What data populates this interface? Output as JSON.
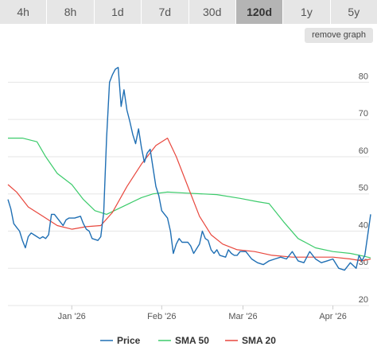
{
  "tabs": [
    {
      "label": "4h",
      "active": false
    },
    {
      "label": "8h",
      "active": false
    },
    {
      "label": "1d",
      "active": false
    },
    {
      "label": "7d",
      "active": false
    },
    {
      "label": "30d",
      "active": false
    },
    {
      "label": "120d",
      "active": true
    },
    {
      "label": "1y",
      "active": false
    },
    {
      "label": "5y",
      "active": false
    }
  ],
  "remove_graph_label": "remove graph",
  "colors": {
    "price": "#1f6fb4",
    "sma50": "#3ccb6b",
    "sma20": "#e8473d"
  },
  "chart_data": {
    "type": "line",
    "title": "",
    "xlabel": "",
    "ylabel": "",
    "ylim": [
      20,
      88
    ],
    "yticks": [
      20,
      30,
      40,
      50,
      60,
      70,
      80
    ],
    "x_range": [
      "2025-12-10",
      "2026-04-14"
    ],
    "xticks": [
      {
        "label": "Jan '26",
        "date": "2026-01-01"
      },
      {
        "label": "Feb '26",
        "date": "2026-02-01"
      },
      {
        "label": "Mar '26",
        "date": "2026-03-01"
      },
      {
        "label": "Apr '26",
        "date": "2026-04-01"
      }
    ],
    "grid": true,
    "legend_position": "bottom",
    "series": [
      {
        "name": "Price",
        "color_key": "price",
        "points": [
          [
            "2025-12-10",
            48.5
          ],
          [
            "2025-12-11",
            46
          ],
          [
            "2025-12-12",
            42
          ],
          [
            "2025-12-13",
            41
          ],
          [
            "2025-12-14",
            40
          ],
          [
            "2025-12-15",
            37.5
          ],
          [
            "2025-12-16",
            35.5
          ],
          [
            "2025-12-17",
            38.5
          ],
          [
            "2025-12-18",
            39.5
          ],
          [
            "2025-12-19",
            39
          ],
          [
            "2025-12-20",
            38.5
          ],
          [
            "2025-12-21",
            38
          ],
          [
            "2025-12-22",
            38.5
          ],
          [
            "2025-12-23",
            38
          ],
          [
            "2025-12-24",
            39
          ],
          [
            "2025-12-25",
            44.5
          ],
          [
            "2025-12-26",
            44.5
          ],
          [
            "2025-12-27",
            43.5
          ],
          [
            "2025-12-28",
            42.5
          ],
          [
            "2025-12-29",
            41.5
          ],
          [
            "2025-12-30",
            43
          ],
          [
            "2025-12-31",
            43.5
          ],
          [
            "2026-01-02",
            43.5
          ],
          [
            "2026-01-04",
            44
          ],
          [
            "2026-01-05",
            42
          ],
          [
            "2026-01-06",
            40.5
          ],
          [
            "2026-01-07",
            40
          ],
          [
            "2026-01-08",
            38
          ],
          [
            "2026-01-10",
            37.5
          ],
          [
            "2026-01-11",
            38.5
          ],
          [
            "2026-01-12",
            45
          ],
          [
            "2026-01-13",
            65
          ],
          [
            "2026-01-14",
            80
          ],
          [
            "2026-01-15",
            82
          ],
          [
            "2026-01-16",
            83.5
          ],
          [
            "2026-01-17",
            84
          ],
          [
            "2026-01-18",
            73.5
          ],
          [
            "2026-01-19",
            78
          ],
          [
            "2026-01-20",
            72.5
          ],
          [
            "2026-01-21",
            69.5
          ],
          [
            "2026-01-22",
            66
          ],
          [
            "2026-01-23",
            63.5
          ],
          [
            "2026-01-24",
            67.5
          ],
          [
            "2026-01-25",
            62.5
          ],
          [
            "2026-01-26",
            58.5
          ],
          [
            "2026-01-27",
            61
          ],
          [
            "2026-01-28",
            62
          ],
          [
            "2026-01-29",
            57
          ],
          [
            "2026-01-30",
            52
          ],
          [
            "2026-01-31",
            49.5
          ],
          [
            "2026-02-01",
            45.5
          ],
          [
            "2026-02-03",
            43.5
          ],
          [
            "2026-02-04",
            40
          ],
          [
            "2026-02-05",
            34
          ],
          [
            "2026-02-06",
            36.5
          ],
          [
            "2026-02-07",
            38
          ],
          [
            "2026-02-08",
            37
          ],
          [
            "2026-02-10",
            37
          ],
          [
            "2026-02-11",
            36
          ],
          [
            "2026-02-12",
            34
          ],
          [
            "2026-02-14",
            36.5
          ],
          [
            "2026-02-15",
            40
          ],
          [
            "2026-02-16",
            38
          ],
          [
            "2026-02-17",
            37.5
          ],
          [
            "2026-02-18",
            35
          ],
          [
            "2026-02-19",
            34
          ],
          [
            "2026-02-20",
            35
          ],
          [
            "2026-02-21",
            33.5
          ],
          [
            "2026-02-23",
            33
          ],
          [
            "2026-02-24",
            35
          ],
          [
            "2026-02-25",
            34
          ],
          [
            "2026-02-26",
            33.5
          ],
          [
            "2026-02-27",
            33.5
          ],
          [
            "2026-02-28",
            34.5
          ],
          [
            "2026-03-02",
            34.5
          ],
          [
            "2026-03-04",
            32.5
          ],
          [
            "2026-03-06",
            31.5
          ],
          [
            "2026-03-08",
            31
          ],
          [
            "2026-03-10",
            32
          ],
          [
            "2026-03-12",
            32.5
          ],
          [
            "2026-03-14",
            33
          ],
          [
            "2026-03-16",
            32.5
          ],
          [
            "2026-03-18",
            34.5
          ],
          [
            "2026-03-20",
            32
          ],
          [
            "2026-03-22",
            31.5
          ],
          [
            "2026-03-24",
            34.5
          ],
          [
            "2026-03-26",
            32.5
          ],
          [
            "2026-03-28",
            31.5
          ],
          [
            "2026-03-30",
            32
          ],
          [
            "2026-04-01",
            32.5
          ],
          [
            "2026-04-03",
            30
          ],
          [
            "2026-04-05",
            29.5
          ],
          [
            "2026-04-07",
            31.5
          ],
          [
            "2026-04-09",
            30
          ],
          [
            "2026-04-10",
            33.5
          ],
          [
            "2026-04-11",
            32
          ],
          [
            "2026-04-12",
            33.5
          ],
          [
            "2026-04-13",
            39
          ],
          [
            "2026-04-14",
            44.5
          ]
        ]
      },
      {
        "name": "SMA 50",
        "color_key": "sma50",
        "points": [
          [
            "2025-12-10",
            65
          ],
          [
            "2025-12-15",
            65
          ],
          [
            "2025-12-20",
            64
          ],
          [
            "2025-12-23",
            60
          ],
          [
            "2025-12-27",
            55.5
          ],
          [
            "2026-01-01",
            52.5
          ],
          [
            "2026-01-05",
            48.5
          ],
          [
            "2026-01-09",
            45.5
          ],
          [
            "2026-01-13",
            44.5
          ],
          [
            "2026-01-17",
            46
          ],
          [
            "2026-01-21",
            47.5
          ],
          [
            "2026-01-25",
            49
          ],
          [
            "2026-01-29",
            50
          ],
          [
            "2026-02-03",
            50.5
          ],
          [
            "2026-02-10",
            50.2
          ],
          [
            "2026-02-20",
            49.8
          ],
          [
            "2026-02-28",
            48.8
          ],
          [
            "2026-03-06",
            47.9
          ],
          [
            "2026-03-10",
            47.4
          ],
          [
            "2026-03-15",
            42.5
          ],
          [
            "2026-03-20",
            38
          ],
          [
            "2026-03-26",
            35.5
          ],
          [
            "2026-04-01",
            34.5
          ],
          [
            "2026-04-07",
            34
          ],
          [
            "2026-04-12",
            33.2
          ],
          [
            "2026-04-14",
            32.8
          ]
        ]
      },
      {
        "name": "SMA 20",
        "color_key": "sma20",
        "points": [
          [
            "2025-12-10",
            52.5
          ],
          [
            "2025-12-13",
            50.5
          ],
          [
            "2025-12-17",
            46.5
          ],
          [
            "2025-12-22",
            44
          ],
          [
            "2025-12-27",
            41.5
          ],
          [
            "2026-01-01",
            40.5
          ],
          [
            "2026-01-06",
            41.2
          ],
          [
            "2026-01-11",
            41.5
          ],
          [
            "2026-01-15",
            45
          ],
          [
            "2026-01-20",
            52
          ],
          [
            "2026-01-25",
            58
          ],
          [
            "2026-01-30",
            63
          ],
          [
            "2026-02-03",
            65
          ],
          [
            "2026-02-06",
            60
          ],
          [
            "2026-02-10",
            52
          ],
          [
            "2026-02-14",
            44
          ],
          [
            "2026-02-18",
            39
          ],
          [
            "2026-02-22",
            36.5
          ],
          [
            "2026-02-27",
            35
          ],
          [
            "2026-03-05",
            34.5
          ],
          [
            "2026-03-11",
            33.5
          ],
          [
            "2026-03-18",
            33
          ],
          [
            "2026-03-25",
            33
          ],
          [
            "2026-04-01",
            33
          ],
          [
            "2026-04-07",
            32.5
          ],
          [
            "2026-04-11",
            32
          ],
          [
            "2026-04-14",
            32.5
          ]
        ]
      }
    ]
  }
}
